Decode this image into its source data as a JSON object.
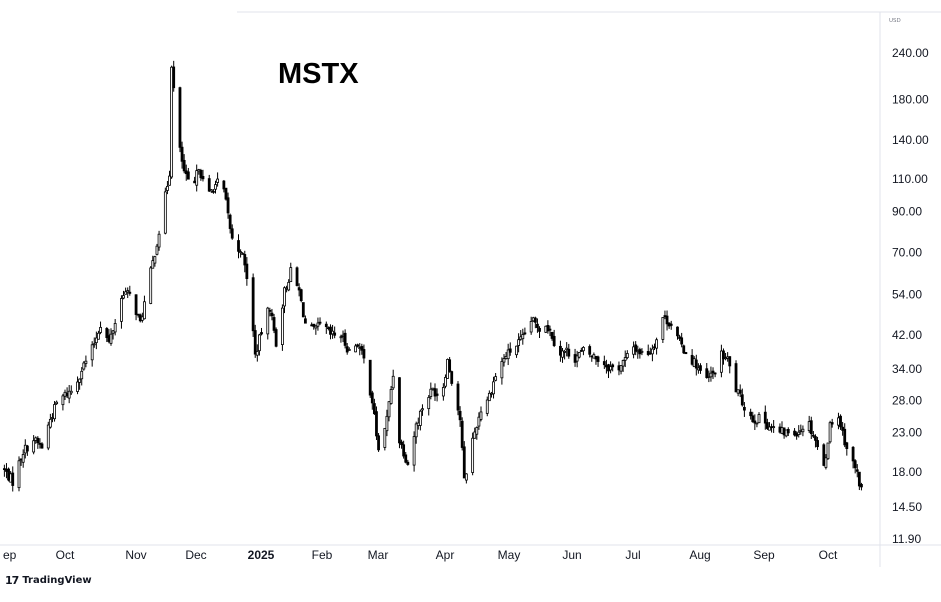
{
  "chart_data": {
    "type": "candlestick",
    "title": "MSTX",
    "currency": "USD",
    "price_scale": "log",
    "y_ticks": [
      "240.00",
      "180.00",
      "140.00",
      "110.00",
      "90.00",
      "70.00",
      "54.00",
      "42.00",
      "34.00",
      "28.00",
      "23.00",
      "18.00",
      "14.50",
      "11.90"
    ],
    "x_ticks": [
      "ep",
      "Oct",
      "Nov",
      "Dec",
      "2025",
      "Feb",
      "Mar",
      "Apr",
      "May",
      "Jun",
      "Jul",
      "Aug",
      "Sep",
      "Oct"
    ],
    "bold_x_ticks": [
      "2025"
    ],
    "ylim": [
      11.9,
      240
    ],
    "grid": false,
    "candle_up_color": "#ffffff",
    "candle_down_color": "#000000",
    "candle_border_color": "#000000",
    "close_path": [
      [
        "2024-09-01",
        18.5
      ],
      [
        "2024-09-06",
        17.0
      ],
      [
        "2024-09-11",
        20.5
      ],
      [
        "2024-09-16",
        22.0
      ],
      [
        "2024-09-20",
        21.0
      ],
      [
        "2024-09-24",
        25.0
      ],
      [
        "2024-09-27",
        27.5
      ],
      [
        "2024-10-01",
        29.0
      ],
      [
        "2024-10-05",
        30.0
      ],
      [
        "2024-10-09",
        34.0
      ],
      [
        "2024-10-14",
        38.5
      ],
      [
        "2024-10-18",
        45.0
      ],
      [
        "2024-10-22",
        40.0
      ],
      [
        "2024-10-25",
        45.5
      ],
      [
        "2024-10-29",
        55.0
      ],
      [
        "2024-11-02",
        53.0
      ],
      [
        "2024-11-06",
        45.0
      ],
      [
        "2024-11-10",
        58.0
      ],
      [
        "2024-11-13",
        70.0
      ],
      [
        "2024-11-16",
        85.0
      ],
      [
        "2024-11-20",
        115.0
      ],
      [
        "2024-11-21",
        225.0
      ],
      [
        "2024-11-24",
        140.0
      ],
      [
        "2024-11-27",
        115.0
      ],
      [
        "2024-12-01",
        100.0
      ],
      [
        "2024-12-04",
        120.0
      ],
      [
        "2024-12-08",
        98.0
      ],
      [
        "2024-12-11",
        105.0
      ],
      [
        "2024-12-15",
        110.0
      ],
      [
        "2024-12-18",
        88.0
      ],
      [
        "2024-12-21",
        70.0
      ],
      [
        "2024-12-24",
        72.0
      ],
      [
        "2024-12-28",
        57.0
      ],
      [
        "2024-12-31",
        37.0
      ],
      [
        "2025-01-04",
        45.0
      ],
      [
        "2025-01-07",
        50.0
      ],
      [
        "2025-01-10",
        40.0
      ],
      [
        "2025-01-14",
        55.0
      ],
      [
        "2025-01-17",
        62.0
      ],
      [
        "2025-01-21",
        55.0
      ],
      [
        "2025-01-24",
        45.0
      ],
      [
        "2025-01-28",
        43.0
      ],
      [
        "2025-02-01",
        45.0
      ],
      [
        "2025-02-05",
        42.0
      ],
      [
        "2025-02-10",
        42.0
      ],
      [
        "2025-02-14",
        38.0
      ],
      [
        "2025-02-18",
        40.0
      ],
      [
        "2025-02-21",
        36.0
      ],
      [
        "2025-02-25",
        28.0
      ],
      [
        "2025-02-28",
        20.5
      ],
      [
        "2025-03-04",
        25.0
      ],
      [
        "2025-03-07",
        33.0
      ],
      [
        "2025-03-10",
        22.0
      ],
      [
        "2025-03-14",
        19.0
      ],
      [
        "2025-03-18",
        24.0
      ],
      [
        "2025-03-22",
        28.0
      ],
      [
        "2025-03-26",
        30.0
      ],
      [
        "2025-03-30",
        28.5
      ],
      [
        "2025-04-02",
        36.0
      ],
      [
        "2025-04-05",
        30.0
      ],
      [
        "2025-04-08",
        25.0
      ],
      [
        "2025-04-10",
        17.0
      ],
      [
        "2025-04-14",
        22.0
      ],
      [
        "2025-04-18",
        26.5
      ],
      [
        "2025-04-22",
        29.0
      ],
      [
        "2025-04-26",
        34.0
      ],
      [
        "2025-04-30",
        37.0
      ],
      [
        "2025-05-04",
        39.0
      ],
      [
        "2025-05-08",
        41.0
      ],
      [
        "2025-05-12",
        46.0
      ],
      [
        "2025-05-16",
        44.0
      ],
      [
        "2025-05-19",
        45.0
      ],
      [
        "2025-05-22",
        42.0
      ],
      [
        "2025-05-25",
        37.5
      ],
      [
        "2025-05-29",
        38.0
      ],
      [
        "2025-06-02",
        36.5
      ],
      [
        "2025-06-06",
        38.0
      ],
      [
        "2025-06-10",
        37.0
      ],
      [
        "2025-06-14",
        36.0
      ],
      [
        "2025-06-18",
        34.5
      ],
      [
        "2025-06-22",
        34.0
      ],
      [
        "2025-06-26",
        36.0
      ],
      [
        "2025-06-30",
        39.0
      ],
      [
        "2025-07-04",
        37.5
      ],
      [
        "2025-07-08",
        38.0
      ],
      [
        "2025-07-11",
        41.0
      ],
      [
        "2025-07-14",
        47.0
      ],
      [
        "2025-07-18",
        45.0
      ],
      [
        "2025-07-22",
        40.0
      ],
      [
        "2025-07-26",
        37.0
      ],
      [
        "2025-07-30",
        35.0
      ],
      [
        "2025-08-03",
        31.5
      ],
      [
        "2025-08-07",
        33.0
      ],
      [
        "2025-08-11",
        37.0
      ],
      [
        "2025-08-14",
        36.0
      ],
      [
        "2025-08-18",
        30.0
      ],
      [
        "2025-08-22",
        27.0
      ],
      [
        "2025-08-26",
        25.0
      ],
      [
        "2025-08-30",
        25.0
      ],
      [
        "2025-09-03",
        24.0
      ],
      [
        "2025-09-07",
        23.0
      ],
      [
        "2025-09-11",
        23.0
      ],
      [
        "2025-09-15",
        23.0
      ],
      [
        "2025-09-18",
        23.5
      ],
      [
        "2025-09-21",
        25.0
      ],
      [
        "2025-09-25",
        22.0
      ],
      [
        "2025-09-29",
        18.5
      ],
      [
        "2025-10-02",
        24.0
      ],
      [
        "2025-10-05",
        26.5
      ],
      [
        "2025-10-08",
        23.0
      ],
      [
        "2025-10-11",
        20.0
      ],
      [
        "2025-10-14",
        18.5
      ],
      [
        "2025-10-17",
        16.2
      ]
    ]
  },
  "watermark": {
    "logo": "17",
    "text": "TradingView"
  }
}
